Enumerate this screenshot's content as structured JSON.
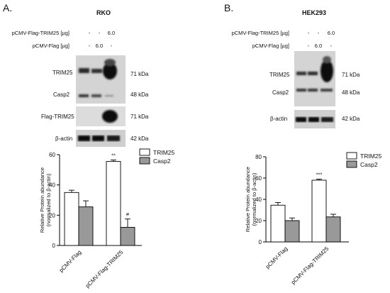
{
  "panels": [
    {
      "letter": "A.",
      "cell_line": "RKO",
      "conditions": [
        {
          "label": "pCMV-Flag-TRIM25 [µg]",
          "values": [
            "-",
            "-",
            "6.0"
          ]
        },
        {
          "label": "pCMV-Flag [µg]",
          "values": [
            "-",
            "6.0",
            "-"
          ]
        }
      ],
      "blots": [
        {
          "label": "TRIM25",
          "kda": "71 kDa"
        },
        {
          "label": "Casp2",
          "kda": "48 kDa"
        },
        {
          "label": "Flag-TRIM25",
          "kda": "71 kDa"
        },
        {
          "label": "β-actin",
          "kda": "42 kDa"
        }
      ]
    },
    {
      "letter": "B.",
      "cell_line": "HEK293",
      "conditions": [
        {
          "label": "pCMV-Flag-TRIM25 [µg]",
          "values": [
            "-",
            "-",
            "6.0"
          ]
        },
        {
          "label": "pCMV-Flag [µg]",
          "values": [
            "-",
            "6.0",
            "-"
          ]
        }
      ],
      "blots": [
        {
          "label": "TRIM25",
          "kda": "71 kDa"
        },
        {
          "label": "Casp2",
          "kda": "48 kDa"
        },
        {
          "label": "β-actin",
          "kda": "42 kDa"
        }
      ]
    }
  ],
  "chart_data": [
    {
      "type": "bar",
      "ylabel_line1": "Relative Protein abundance",
      "ylabel_line2": "(normalized to β-actin)",
      "ylim": [
        0,
        60
      ],
      "yticks": [
        "0",
        "20",
        "40",
        "60"
      ],
      "categories": [
        "pCMV-Flag",
        "pCMV-Flag-TRIM25"
      ],
      "series": [
        {
          "name": "TRIM25",
          "color": "#ffffff",
          "values": [
            35,
            55.5
          ],
          "errors": [
            1.5,
            1
          ]
        },
        {
          "name": "Casp2",
          "color": "#999999",
          "values": [
            25.5,
            12
          ],
          "errors": [
            4,
            5.5
          ]
        }
      ],
      "annotations": [
        {
          "text": "**",
          "category": 1,
          "series": 0
        },
        {
          "text": "#",
          "category": 1,
          "series": 1
        }
      ],
      "legend": "top-right"
    },
    {
      "type": "bar",
      "ylabel_line1": "Relative Protein abundance",
      "ylabel_line2": "(normalized to β-actin)",
      "ylim": [
        0,
        80
      ],
      "yticks": [
        "0",
        "20",
        "40",
        "60",
        "80"
      ],
      "categories": [
        "pCMV-Flag",
        "pCMV-Flag-TRIM25"
      ],
      "series": [
        {
          "name": "TRIM25",
          "color": "#ffffff",
          "values": [
            34.5,
            58
          ],
          "errors": [
            2.5,
            1
          ]
        },
        {
          "name": "Casp2",
          "color": "#999999",
          "values": [
            20,
            23.5
          ],
          "errors": [
            2.5,
            2.5
          ]
        }
      ],
      "annotations": [
        {
          "text": "***",
          "category": 1,
          "series": 0
        }
      ],
      "legend": "top-right"
    }
  ]
}
